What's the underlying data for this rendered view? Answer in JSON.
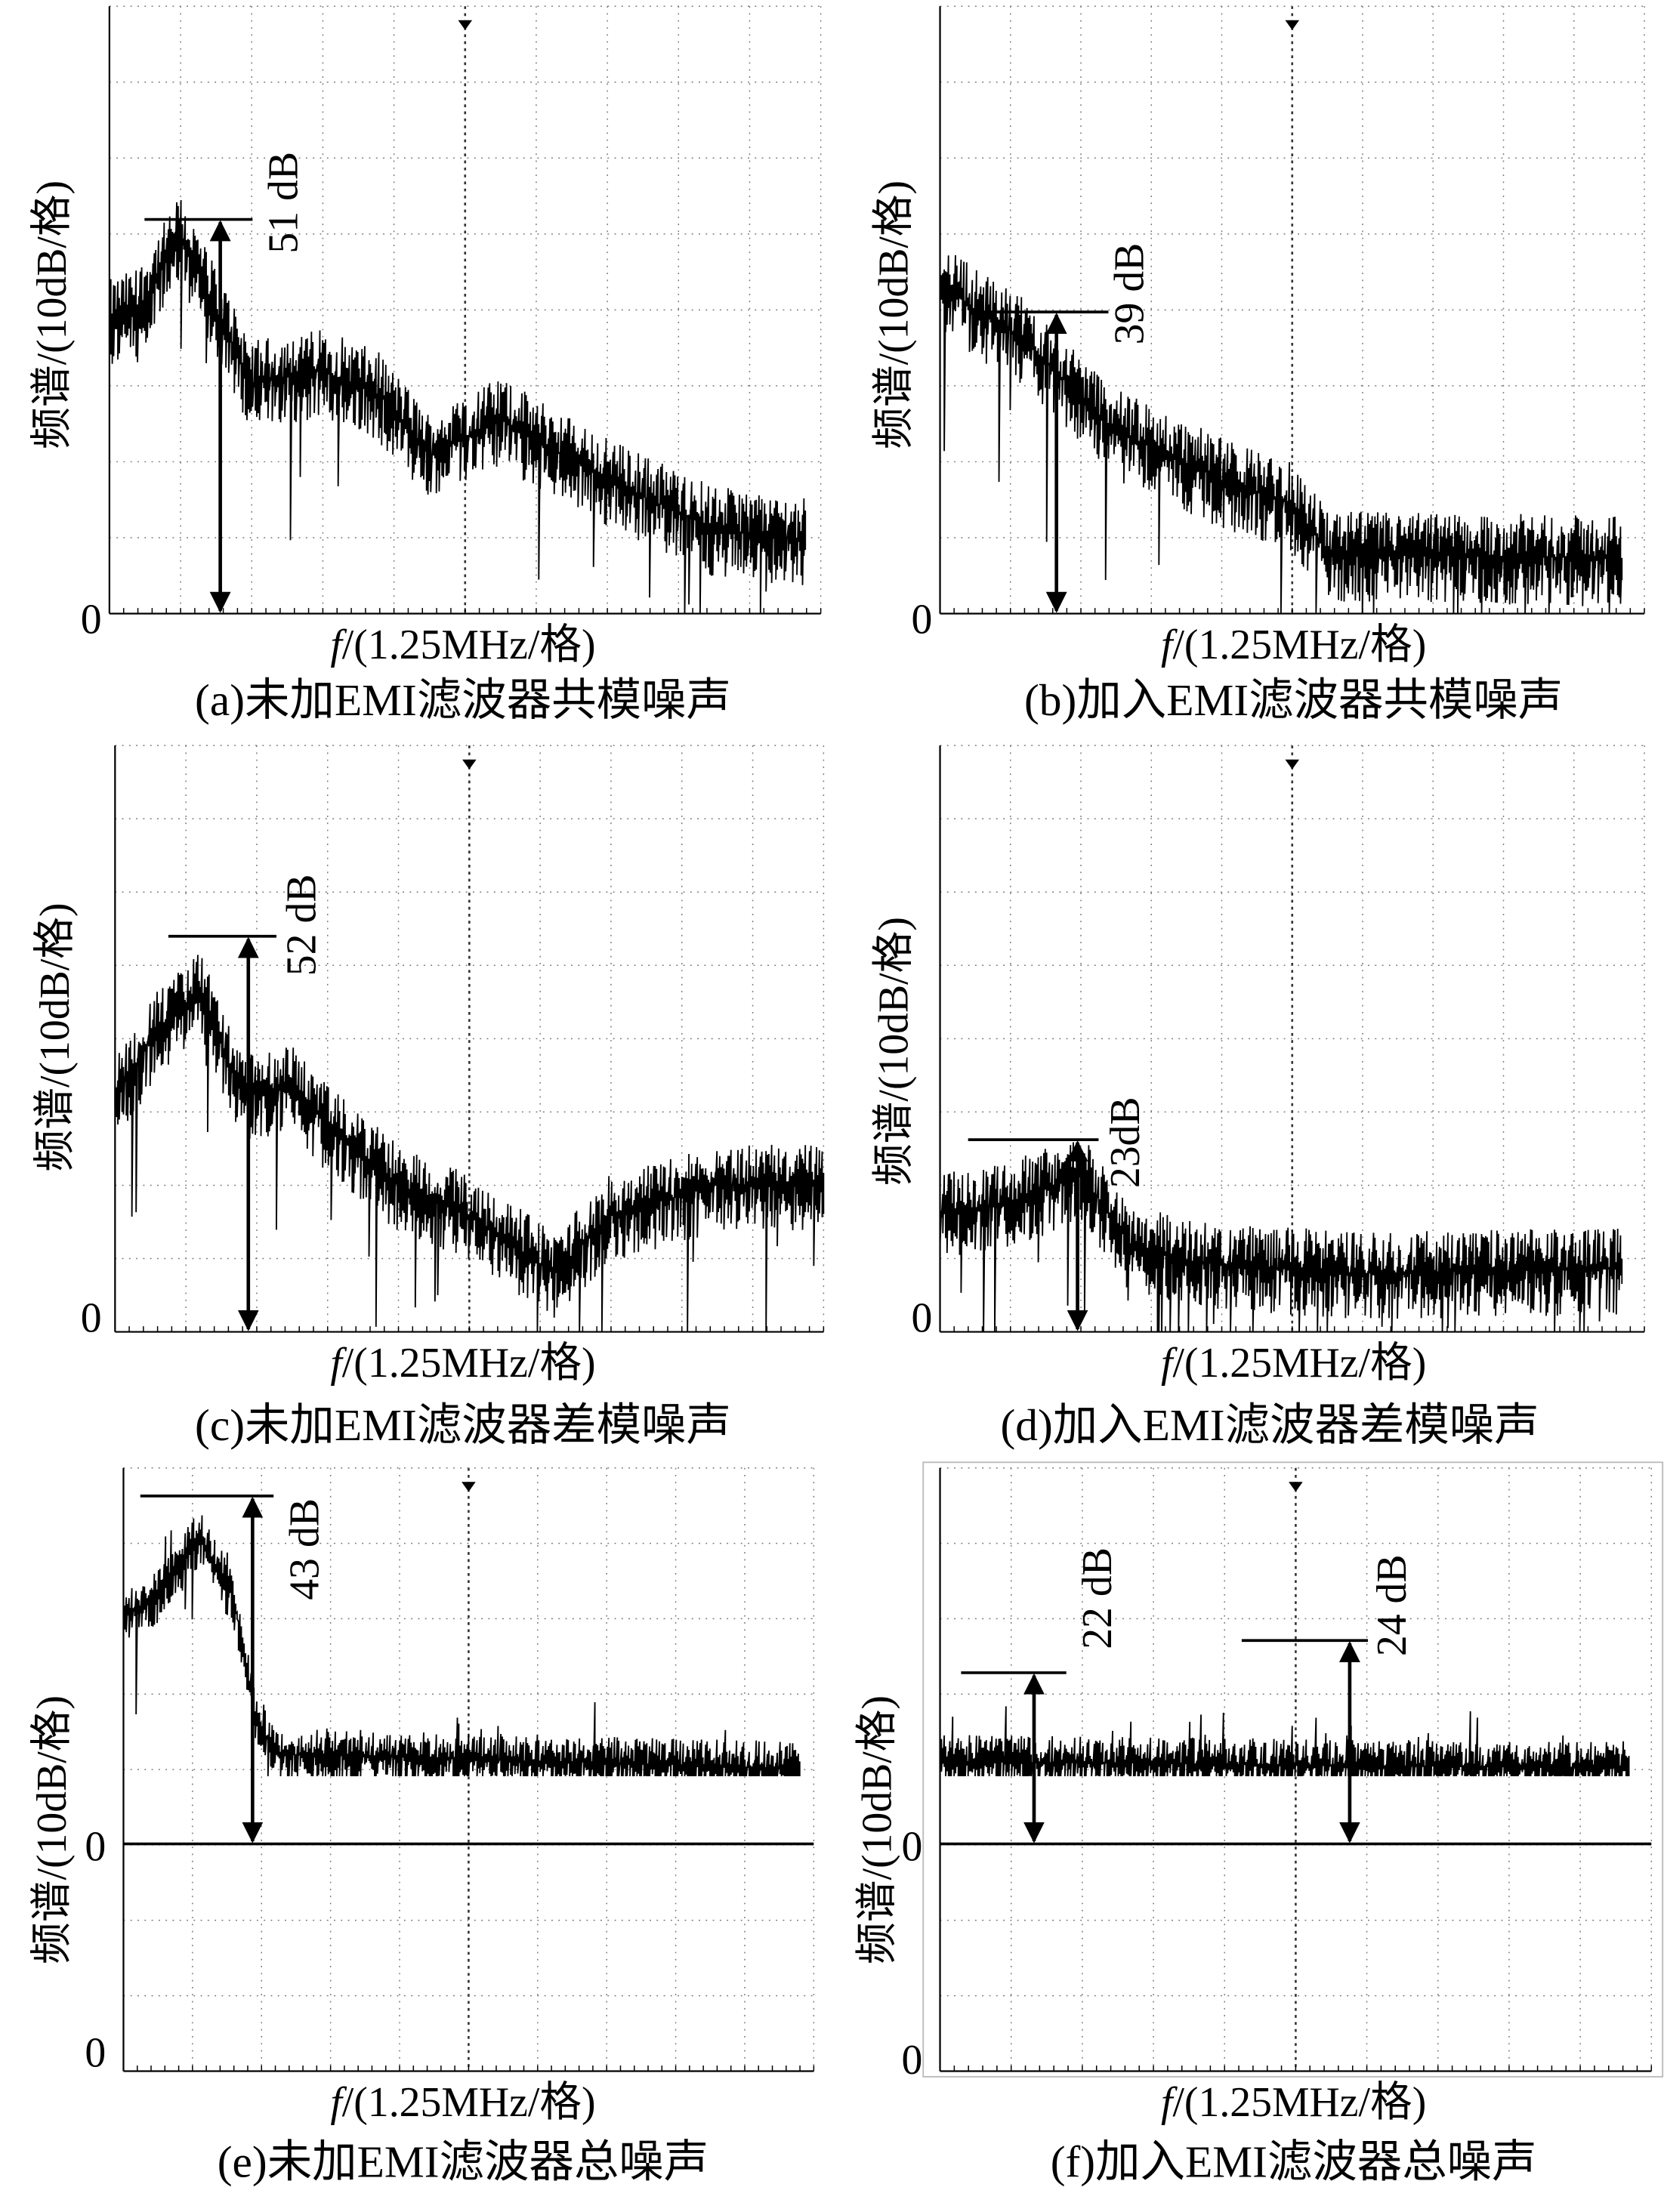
{
  "panels": [
    {
      "caption": "(a)未加EMI滤波器共模噪声",
      "y_label": "频谱/(10dB/格)",
      "x_label_var": "f",
      "x_label_unit": "/(1.25MHz/格)",
      "zero_labels": [
        "0"
      ],
      "annotations": [
        "51 dB"
      ]
    },
    {
      "caption": "(b)加入EMI滤波器共模噪声",
      "y_label": "频谱/(10dB/格)",
      "x_label_var": "f",
      "x_label_unit": "/(1.25MHz/格)",
      "zero_labels": [
        "0"
      ],
      "annotations": [
        "39 dB"
      ]
    },
    {
      "caption": "(c)未加EMI滤波器差模噪声",
      "y_label": "频谱/(10dB/格)",
      "x_label_var": "f",
      "x_label_unit": "/(1.25MHz/格)",
      "zero_labels": [
        "0"
      ],
      "annotations": [
        "52 dB"
      ]
    },
    {
      "caption": "(d)加入EMI滤波器差模噪声",
      "y_label": "频谱/(10dB/格)",
      "x_label_var": "f",
      "x_label_unit": "/(1.25MHz/格)",
      "zero_labels": [
        "0"
      ],
      "annotations": [
        "23dB"
      ]
    },
    {
      "caption": "(e)未加EMI滤波器总噪声",
      "y_label": "频谱/(10dB/格)",
      "x_label_var": "f",
      "x_label_unit": "/(1.25MHz/格)",
      "zero_labels": [
        "0",
        "0"
      ],
      "annotations": [
        "43 dB"
      ]
    },
    {
      "caption": "(f)加入EMI滤波器总噪声",
      "y_label": "频谱/(10dB/格)",
      "x_label_var": "f",
      "x_label_unit": "/(1.25MHz/格)",
      "zero_labels": [
        "0",
        "0"
      ],
      "annotations": [
        "22 dB",
        "24 dB"
      ]
    }
  ]
}
